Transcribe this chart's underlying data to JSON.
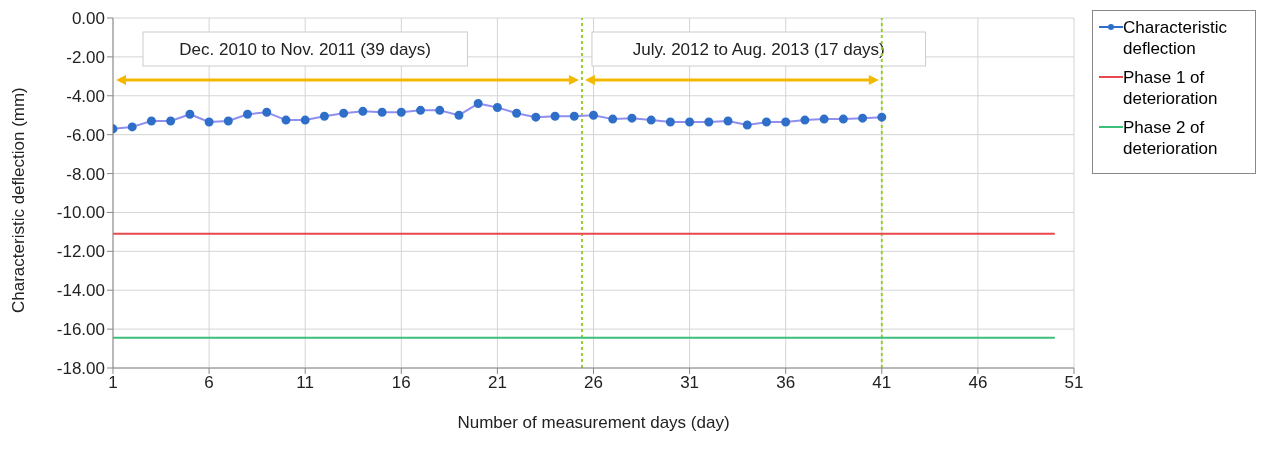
{
  "chart_data": {
    "type": "line",
    "xlabel": "Number of measurement days (day)",
    "ylabel": "Characteristic deflection (mm)",
    "xlim": [
      1,
      51
    ],
    "xticks": [
      1,
      6,
      11,
      16,
      21,
      26,
      31,
      36,
      41,
      46,
      51
    ],
    "ylim": [
      -18,
      0
    ],
    "yticks": [
      {
        "value": 0,
        "label": "0.00"
      },
      {
        "value": -2,
        "label": "-2.00"
      },
      {
        "value": -4,
        "label": "-4.00"
      },
      {
        "value": -6,
        "label": "-6.00"
      },
      {
        "value": -8,
        "label": "-8.00"
      },
      {
        "value": -10,
        "label": "-10.00"
      },
      {
        "value": -12,
        "label": "-12.00"
      },
      {
        "value": -14,
        "label": "-14.00"
      },
      {
        "value": -16,
        "label": "-16.00"
      },
      {
        "value": -18,
        "label": "-18.00"
      }
    ],
    "grid": true,
    "legend": "top right",
    "series": [
      {
        "name": "Characteristic deflection",
        "color": "#2f6fc9",
        "marker": "circle",
        "x": [
          1,
          2,
          3,
          4,
          5,
          6,
          7,
          8,
          9,
          10,
          11,
          12,
          13,
          14,
          15,
          16,
          17,
          18,
          19,
          20,
          21,
          22,
          23,
          24,
          25,
          26,
          27,
          28,
          29,
          30,
          31,
          32,
          33,
          34,
          35,
          36,
          37,
          38,
          39,
          40,
          41
        ],
        "values": [
          -5.7,
          -5.6,
          -5.3,
          -5.3,
          -4.95,
          -5.35,
          -5.3,
          -4.95,
          -4.85,
          -5.25,
          -5.25,
          -5.05,
          -4.9,
          -4.8,
          -4.85,
          -4.85,
          -4.75,
          -4.75,
          -5.0,
          -4.4,
          -4.6,
          -4.9,
          -5.1,
          -5.05,
          -5.05,
          -5.0,
          -5.2,
          -5.15,
          -5.25,
          -5.35,
          -5.35,
          -5.35,
          -5.3,
          -5.5,
          -5.35,
          -5.35,
          -5.25,
          -5.2,
          -5.2,
          -5.15,
          -5.1
        ]
      },
      {
        "name": "Phase 1 of deterioration",
        "color": "#e8474c",
        "x": [
          1,
          50
        ],
        "values": [
          -11.1,
          -11.1
        ]
      },
      {
        "name": "Phase 2 of deterioration",
        "color": "#3cbf78",
        "x": [
          1,
          50
        ],
        "values": [
          -16.45,
          -16.45
        ]
      }
    ],
    "ref_lines": [
      {
        "axis": "x",
        "value": 25.4,
        "color": "#9acd32",
        "line_style": "dotted"
      },
      {
        "axis": "x",
        "value": 41,
        "color": "#9acd32",
        "line_style": "dotted"
      }
    ],
    "annotations": [
      "Dec. 2010 to Nov. 2011 (39 days)",
      "July. 2012 to Aug. 2013 (17 days)"
    ]
  }
}
